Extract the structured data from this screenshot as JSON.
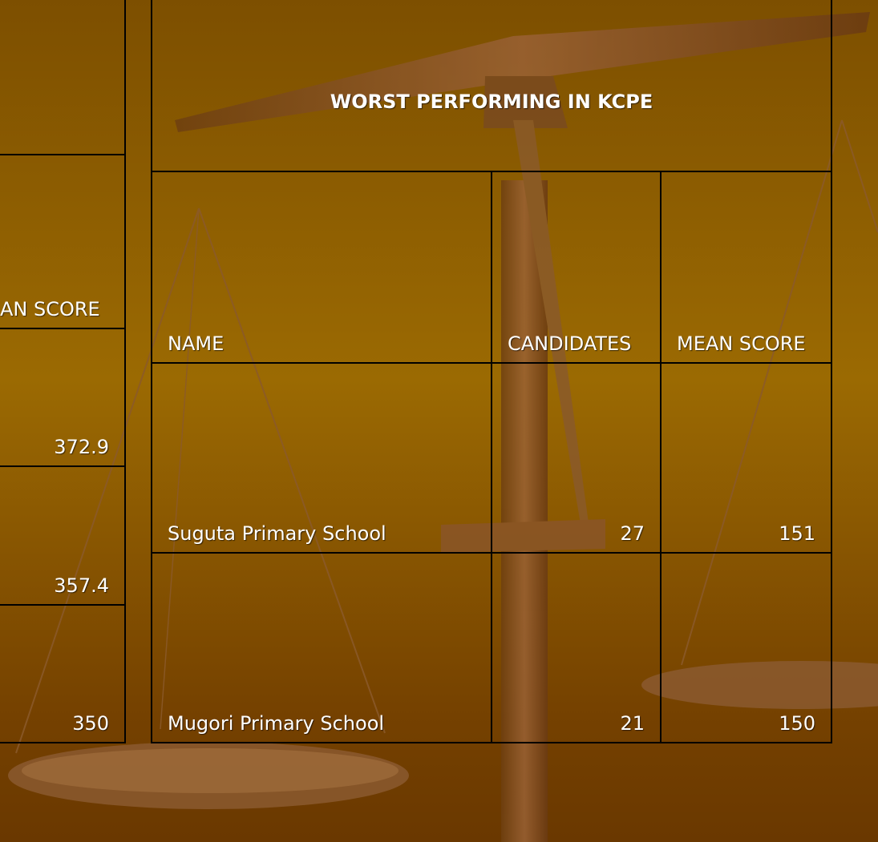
{
  "left_table": {
    "header": "AN SCORE",
    "rows": [
      372.9,
      357.4,
      350
    ]
  },
  "right_table": {
    "title": "WORST PERFORMING IN KCPE",
    "header": [
      "NAME",
      "CANDIDATES",
      "MEAN SCORE"
    ],
    "rows": [
      [
        "Suguta Primary School",
        27,
        151
      ],
      [
        "Mugori Primary School",
        21,
        150
      ]
    ]
  }
}
